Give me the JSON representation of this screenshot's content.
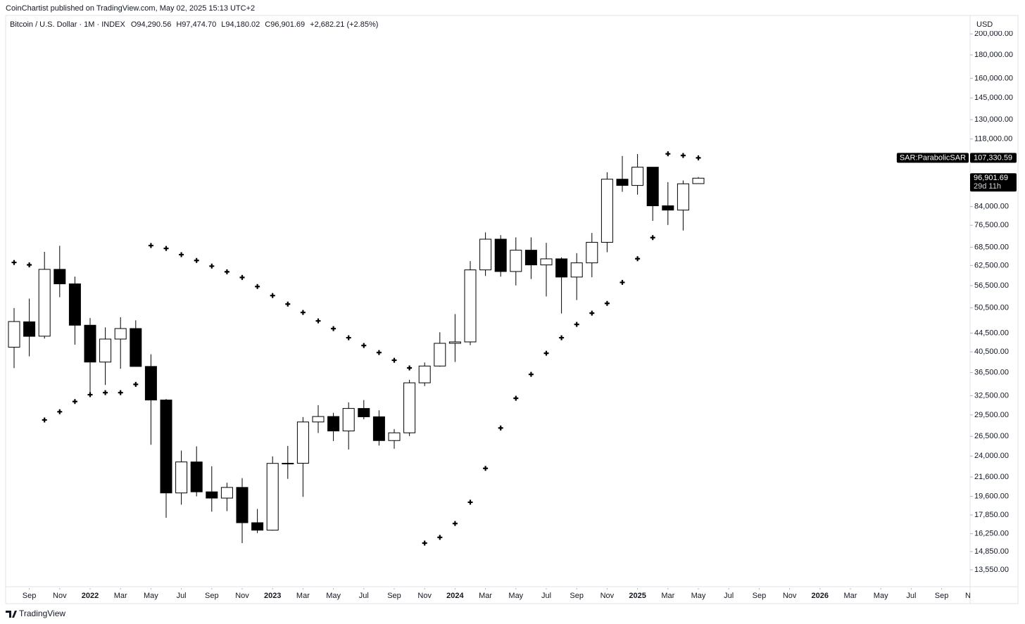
{
  "header": "CoinChartist published on TradingView.com, May 02, 2025 15:13 UTC+2",
  "footer": "TradingView",
  "chart_data": {
    "type": "candlestick",
    "symbol": "Bitcoin / U.S. Dollar · 1M · INDEX",
    "legend": [
      "O94,290.56",
      "H97,474.70",
      "L94,180.02",
      "C96,901.69",
      "+2,682.21 (+2.85%)"
    ],
    "currency": "USD",
    "log_scale": true,
    "x": [
      "2021-08",
      "2021-09",
      "2021-10",
      "2021-11",
      "2021-12",
      "2022-01",
      "2022-02",
      "2022-03",
      "2022-04",
      "2022-05",
      "2022-06",
      "2022-07",
      "2022-08",
      "2022-09",
      "2022-10",
      "2022-11",
      "2022-12",
      "2023-01",
      "2023-02",
      "2023-03",
      "2023-04",
      "2023-05",
      "2023-06",
      "2023-07",
      "2023-08",
      "2023-09",
      "2023-10",
      "2023-11",
      "2023-12",
      "2024-01",
      "2024-02",
      "2024-03",
      "2024-04",
      "2024-05",
      "2024-06",
      "2024-07",
      "2024-08",
      "2024-09",
      "2024-10",
      "2024-11",
      "2024-12",
      "2025-01",
      "2025-02",
      "2025-03",
      "2025-04",
      "2025-05"
    ],
    "open": [
      41461,
      47100,
      43820,
      61300,
      57000,
      46300,
      38480,
      43190,
      45530,
      37640,
      31800,
      19940,
      23300,
      20050,
      19430,
      20500,
      17170,
      16540,
      23130,
      23150,
      28480,
      29270,
      27220,
      30480,
      29230,
      25940,
      26970,
      34670,
      37720,
      42280,
      42580,
      61130,
      71330,
      60640,
      67490,
      62680,
      64620,
      58970,
      63330,
      70220,
      96410,
      93430,
      102400,
      84350,
      82550,
      94290.56
    ],
    "high": [
      50482,
      52920,
      66930,
      69000,
      59100,
      47990,
      45800,
      48200,
      47450,
      40000,
      31970,
      24670,
      25200,
      22800,
      20990,
      21480,
      18400,
      23960,
      25250,
      29190,
      31000,
      29820,
      31430,
      31800,
      30200,
      27480,
      35200,
      38400,
      44700,
      48970,
      63900,
      73800,
      72800,
      71980,
      71980,
      70000,
      65100,
      66500,
      73600,
      99800,
      108300,
      109400,
      102500,
      95000,
      95800,
      97474.7
    ],
    "low": [
      37332,
      39600,
      43300,
      53300,
      42000,
      32950,
      34300,
      37200,
      37700,
      25400,
      17600,
      18800,
      19600,
      18150,
      18200,
      15500,
      16300,
      16500,
      21400,
      19550,
      26950,
      25880,
      24800,
      28860,
      25300,
      24900,
      26540,
      34100,
      37600,
      38500,
      41880,
      59300,
      59100,
      56550,
      58400,
      53500,
      49100,
      52550,
      58900,
      66800,
      90500,
      89200,
      78200,
      76600,
      74500,
      94180.02
    ],
    "close": [
      47166,
      43790,
      61300,
      57000,
      46300,
      38480,
      43190,
      45530,
      37640,
      31800,
      19940,
      23300,
      20050,
      19430,
      20500,
      17170,
      16540,
      23130,
      23150,
      28480,
      29270,
      27220,
      30480,
      29230,
      25940,
      26970,
      34670,
      37720,
      42280,
      42580,
      61130,
      71330,
      60640,
      67490,
      62680,
      64620,
      58970,
      63330,
      70220,
      96410,
      93430,
      102400,
      84350,
      82550,
      94210,
      96901.69
    ],
    "up_color": "#ffffff",
    "down_color": "#000000",
    "border_color": "#000000",
    "sar": {
      "name": "SAR:ParabolicSAR",
      "color": "#000000",
      "values": [
        63460,
        62700,
        28770,
        29980,
        31560,
        32660,
        33000,
        33000,
        34400,
        69080,
        68100,
        66000,
        64100,
        62300,
        60550,
        58850,
        56230,
        53740,
        51480,
        49360,
        47310,
        45520,
        43480,
        41820,
        40360,
        38830,
        37360,
        15500,
        15950,
        17100,
        19030,
        22560,
        27630,
        32080,
        36170,
        40220,
        43480,
        46490,
        49190,
        51670,
        57410,
        64660,
        71900,
        109500,
        108600,
        107330.59
      ]
    },
    "price_tags": [
      {
        "name": "SAR:ParabolicSAR",
        "value": 107330.59,
        "label": "107,330.59"
      },
      {
        "value": 96901.69,
        "label": "96,901.69",
        "countdown": "29d 11h"
      }
    ],
    "ylim": [
      12450,
      219400
    ],
    "yticks": [
      {
        "value": 13550,
        "label": "13,550.00"
      },
      {
        "value": 14850,
        "label": "14,850.00"
      },
      {
        "value": 16250,
        "label": "16,250.00"
      },
      {
        "value": 17850,
        "label": "17,850.00"
      },
      {
        "value": 19600,
        "label": "19,600.00"
      },
      {
        "value": 21600,
        "label": "21,600.00"
      },
      {
        "value": 24000,
        "label": "24,000.00"
      },
      {
        "value": 26500,
        "label": "26,500.00"
      },
      {
        "value": 29500,
        "label": "29,500.00"
      },
      {
        "value": 32500,
        "label": "32,500.00"
      },
      {
        "value": 36500,
        "label": "36,500.00"
      },
      {
        "value": 40500,
        "label": "40,500.00"
      },
      {
        "value": 44500,
        "label": "44,500.00"
      },
      {
        "value": 50500,
        "label": "50,500.00"
      },
      {
        "value": 56500,
        "label": "56,500.00"
      },
      {
        "value": 62500,
        "label": "62,500.00"
      },
      {
        "value": 68500,
        "label": "68,500.00"
      },
      {
        "value": 76500,
        "label": "76,500.00"
      },
      {
        "value": 84000,
        "label": "84,000.00"
      },
      {
        "value": 118000,
        "label": "118,000.00"
      },
      {
        "value": 130000,
        "label": "130,000.00"
      },
      {
        "value": 145000,
        "label": "145,000.00"
      },
      {
        "value": 160000,
        "label": "160,000.00"
      },
      {
        "value": 180000,
        "label": "180,000.00"
      },
      {
        "value": 200000,
        "label": "200,000.00"
      }
    ],
    "xticks": [
      {
        "value": "2021-09",
        "label": "Sep"
      },
      {
        "value": "2021-11",
        "label": "Nov"
      },
      {
        "value": "2022-01",
        "label": "2022"
      },
      {
        "value": "2022-03",
        "label": "Mar"
      },
      {
        "value": "2022-05",
        "label": "May"
      },
      {
        "value": "2022-07",
        "label": "Jul"
      },
      {
        "value": "2022-09",
        "label": "Sep"
      },
      {
        "value": "2022-11",
        "label": "Nov"
      },
      {
        "value": "2023-01",
        "label": "2023"
      },
      {
        "value": "2023-03",
        "label": "Mar"
      },
      {
        "value": "2023-05",
        "label": "May"
      },
      {
        "value": "2023-07",
        "label": "Jul"
      },
      {
        "value": "2023-09",
        "label": "Sep"
      },
      {
        "value": "2023-11",
        "label": "Nov"
      },
      {
        "value": "2024-01",
        "label": "2024"
      },
      {
        "value": "2024-03",
        "label": "Mar"
      },
      {
        "value": "2024-05",
        "label": "May"
      },
      {
        "value": "2024-07",
        "label": "Jul"
      },
      {
        "value": "2024-09",
        "label": "Sep"
      },
      {
        "value": "2024-11",
        "label": "Nov"
      },
      {
        "value": "2025-01",
        "label": "2025"
      },
      {
        "value": "2025-03",
        "label": "Mar"
      },
      {
        "value": "2025-05",
        "label": "May"
      },
      {
        "value": "2025-07",
        "label": "Jul"
      },
      {
        "value": "2025-09",
        "label": "Sep"
      },
      {
        "value": "2025-11",
        "label": "Nov"
      },
      {
        "value": "2026-01",
        "label": "2026"
      },
      {
        "value": "2026-03",
        "label": "Mar"
      },
      {
        "value": "2026-05",
        "label": "May"
      },
      {
        "value": "2026-07",
        "label": "Jul"
      },
      {
        "value": "2026-09",
        "label": "Sep"
      },
      {
        "value": "2026-11",
        "label": "Nov"
      }
    ]
  }
}
